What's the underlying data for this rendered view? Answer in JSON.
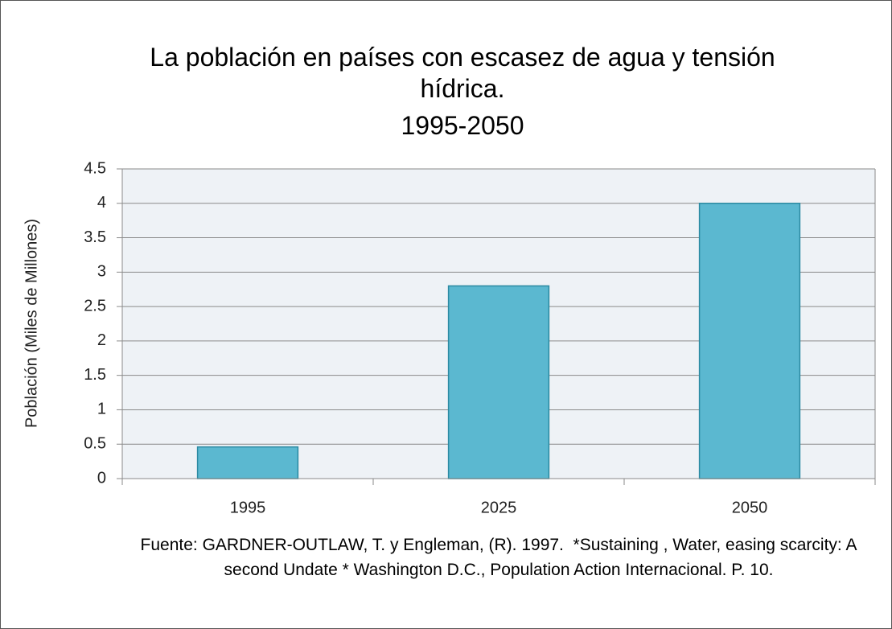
{
  "chart_data": {
    "type": "bar",
    "title": "La población en países con escasez de agua y tensión hídrica.",
    "subtitle": "1995-2050",
    "ylabel": "Población (Miles de Millones)",
    "note": "Fuente: GARDNER-OUTLAW, T. y Engleman, (R). 1997.  *Sustaining , Water, easing scarcity: A second Undate * Washington D.C., Population Action Internacional. P. 10.",
    "categories": [
      "1995",
      "2025",
      "2050"
    ],
    "values": [
      0.46,
      2.8,
      4
    ],
    "color": "#5bb8d0",
    "ylim": [
      0,
      4.5
    ],
    "yticks": [
      0,
      0.5,
      1,
      1.5,
      2,
      2.5,
      3,
      3.5,
      4,
      4.5
    ],
    "grid": true
  }
}
